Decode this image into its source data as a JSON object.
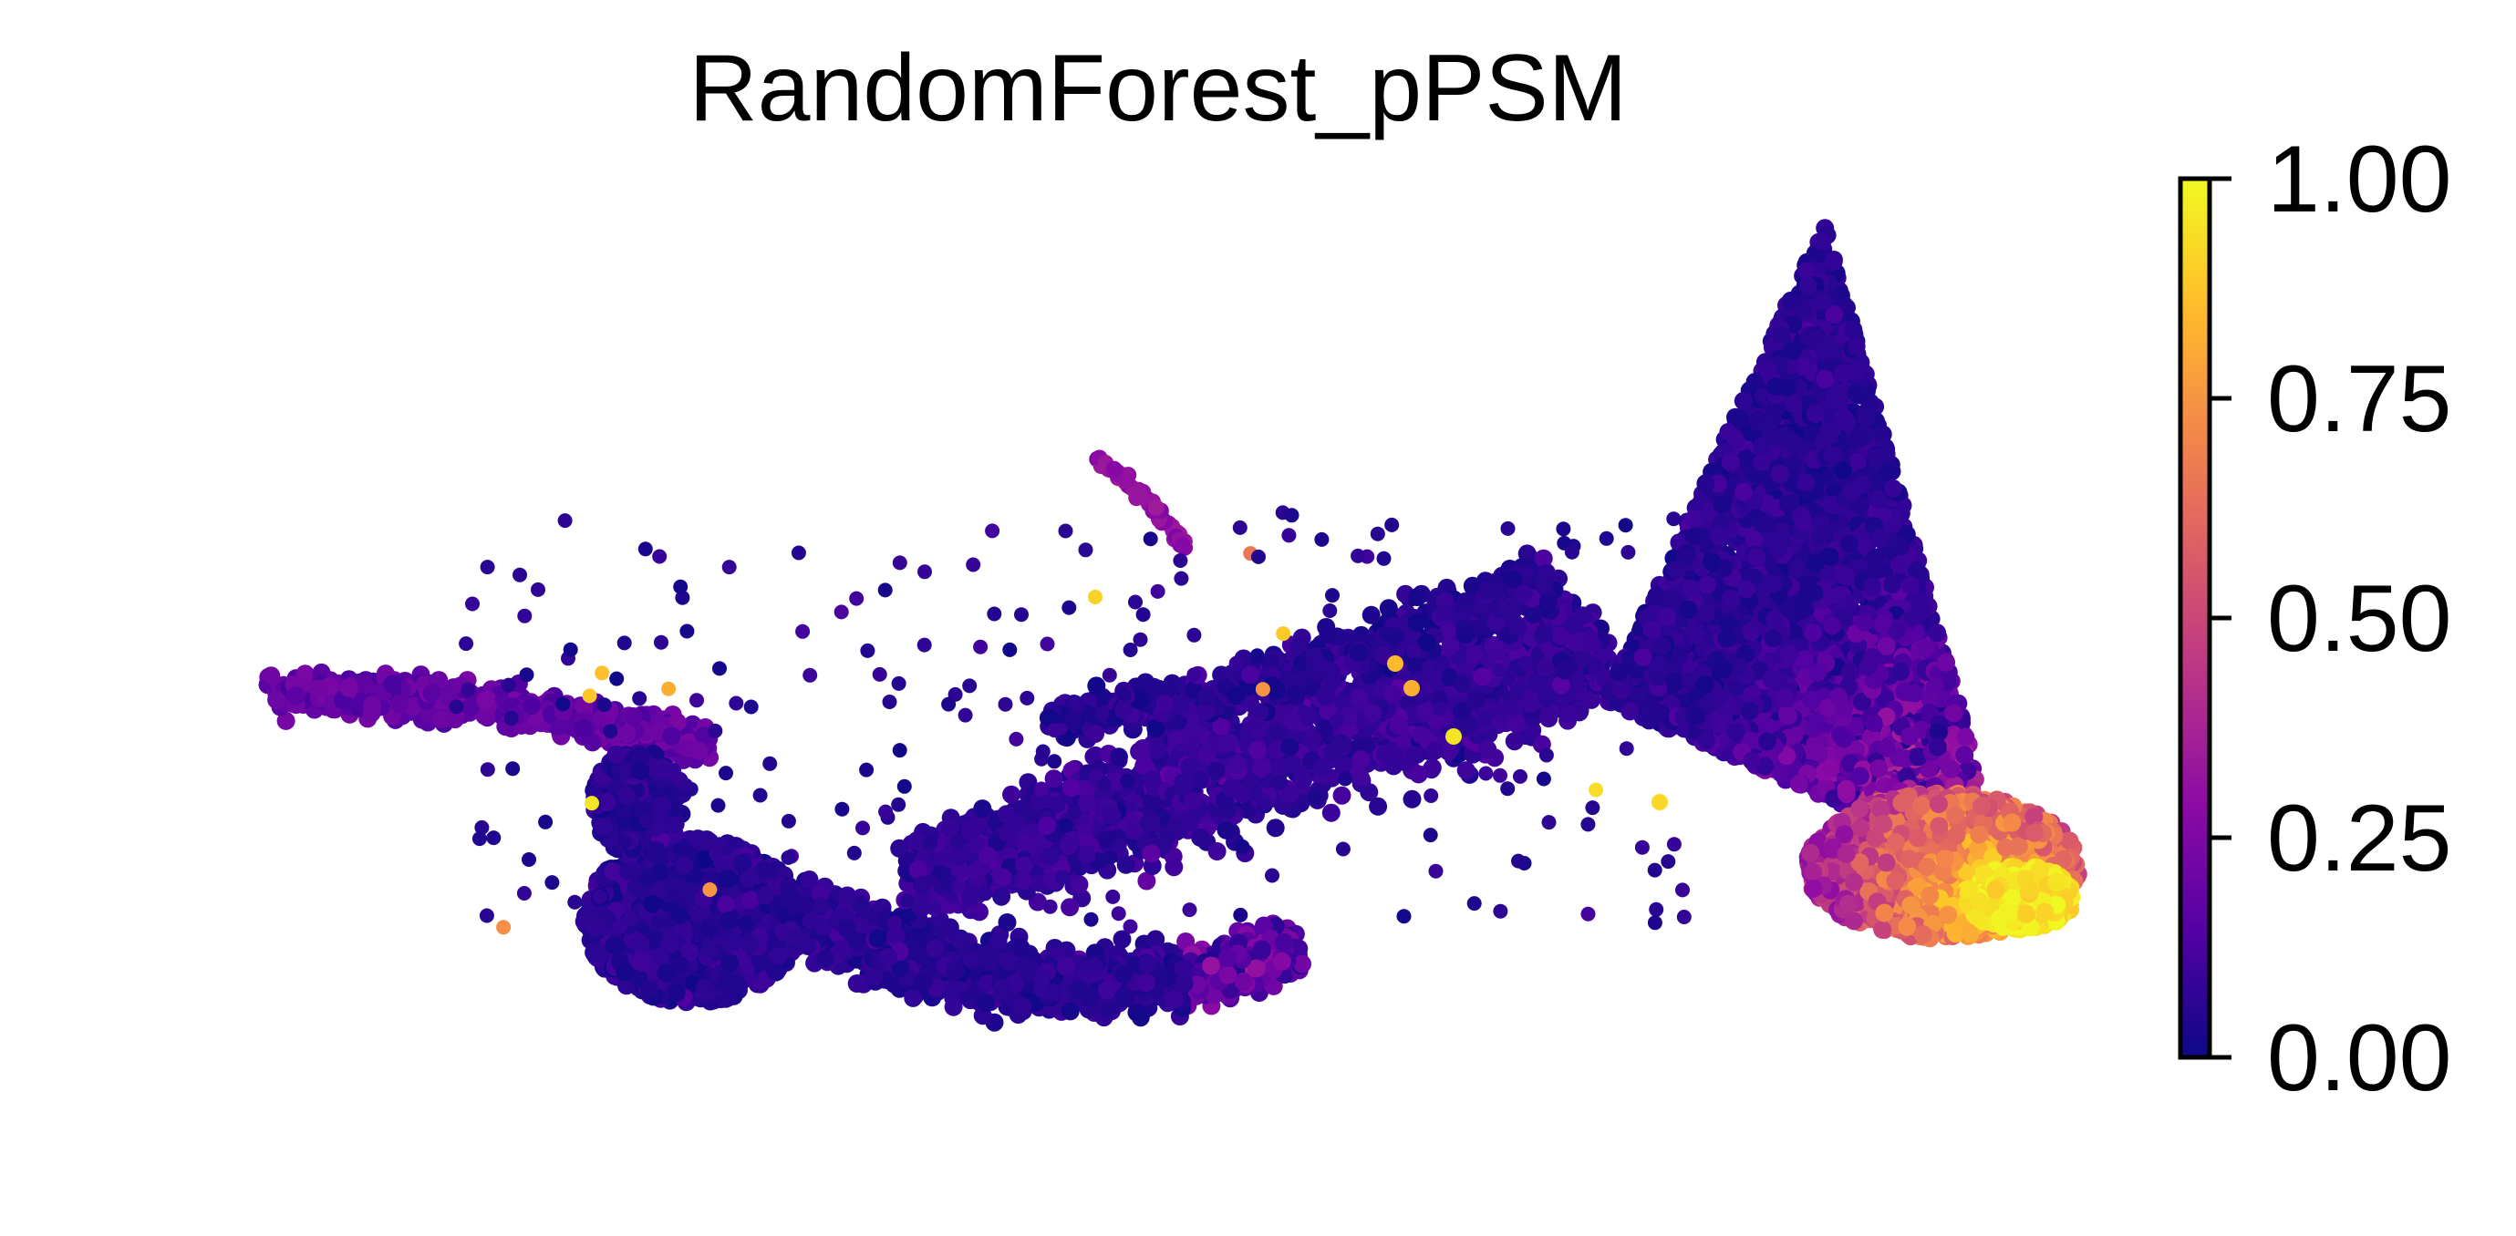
{
  "chart_data": {
    "type": "scatter",
    "title": "RandomForest_pPSM",
    "xlabel": "",
    "ylabel": "",
    "axes_visible": false,
    "grid": false,
    "colormap": "plasma",
    "colormap_stops": [
      "#0d0887",
      "#5302a3",
      "#8b0aa5",
      "#b83289",
      "#db5c68",
      "#f48849",
      "#febd2a",
      "#f0f921"
    ],
    "colorbar": {
      "position": "right",
      "range": [
        0.0,
        1.0
      ],
      "ticks": [
        0.0,
        0.25,
        0.5,
        0.75,
        1.0
      ],
      "tick_labels": [
        "0.00",
        "0.25",
        "0.50",
        "0.75",
        "1.00"
      ]
    },
    "annotations": []
  }
}
